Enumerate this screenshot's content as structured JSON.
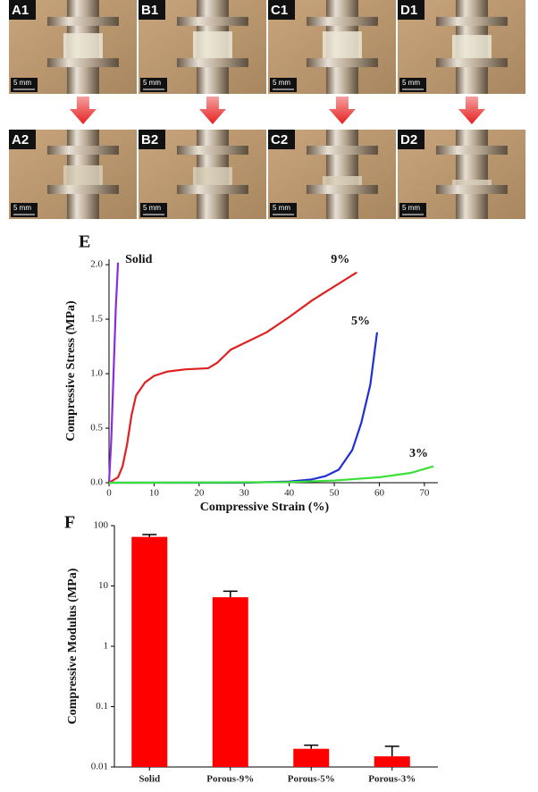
{
  "photos": [
    {
      "label": "A1",
      "scale": "5 mm"
    },
    {
      "label": "B1",
      "scale": "5 mm"
    },
    {
      "label": "C1",
      "scale": "5 mm"
    },
    {
      "label": "D1",
      "scale": "5 mm"
    },
    {
      "label": "A2",
      "scale": "5 mm"
    },
    {
      "label": "B2",
      "scale": "5 mm"
    },
    {
      "label": "C2",
      "scale": "5 mm"
    },
    {
      "label": "D2",
      "scale": "5 mm"
    }
  ],
  "chart_data": [
    {
      "type": "line",
      "panel_label": "E",
      "x_label": "Compressive Strain (%)",
      "y_label": "Compressive Stress (MPa)",
      "xlim": [
        0,
        73
      ],
      "ylim": [
        0,
        2.05
      ],
      "xticks": [
        0,
        10,
        20,
        30,
        40,
        50,
        60,
        70
      ],
      "yticks": [
        {
          "value": 0,
          "label": "0.0"
        },
        0.5,
        {
          "value": 1,
          "label": "1.0"
        },
        1.5,
        {
          "value": 2,
          "label": "2.0"
        }
      ],
      "series": [
        {
          "name": "Solid",
          "color": "#8a2be2",
          "x": [
            0,
            0.5,
            1,
            1.5,
            2
          ],
          "values": [
            0,
            0.4,
            1.0,
            1.6,
            2.02
          ]
        },
        {
          "name": "9%",
          "color": "#e02020",
          "x": [
            0,
            2,
            3,
            4,
            5,
            6,
            8,
            10,
            13,
            17,
            22,
            24,
            27,
            30,
            35,
            40,
            45,
            50,
            55
          ],
          "values": [
            0,
            0.05,
            0.15,
            0.35,
            0.62,
            0.8,
            0.92,
            0.98,
            1.02,
            1.04,
            1.05,
            1.1,
            1.22,
            1.28,
            1.38,
            1.52,
            1.67,
            1.8,
            1.93
          ]
        },
        {
          "name": "5%",
          "color": "#1f2fd6",
          "x": [
            0,
            30,
            40,
            45,
            48,
            51,
            54,
            56,
            58,
            59.5
          ],
          "values": [
            0,
            0,
            0.01,
            0.03,
            0.06,
            0.12,
            0.3,
            0.55,
            0.9,
            1.38
          ]
        },
        {
          "name": "3%",
          "color": "#3ae03a",
          "x": [
            0,
            40,
            50,
            60,
            67,
            72
          ],
          "values": [
            0,
            0.005,
            0.02,
            0.05,
            0.09,
            0.15
          ]
        }
      ]
    },
    {
      "type": "bar",
      "panel_label": "F",
      "y_label": "Compressive Modulus (MPa)",
      "log_scale": true,
      "ylim": [
        0.01,
        100
      ],
      "yticks": [
        0.01,
        0.1,
        1,
        10,
        100
      ],
      "categories": [
        "Solid",
        "Porous-9%",
        "Porous-5%",
        "Porous-3%"
      ],
      "values": [
        65,
        6.5,
        0.02,
        0.015
      ],
      "errors": [
        6,
        1.7,
        0.003,
        0.007
      ],
      "color": "#ff0000"
    }
  ]
}
